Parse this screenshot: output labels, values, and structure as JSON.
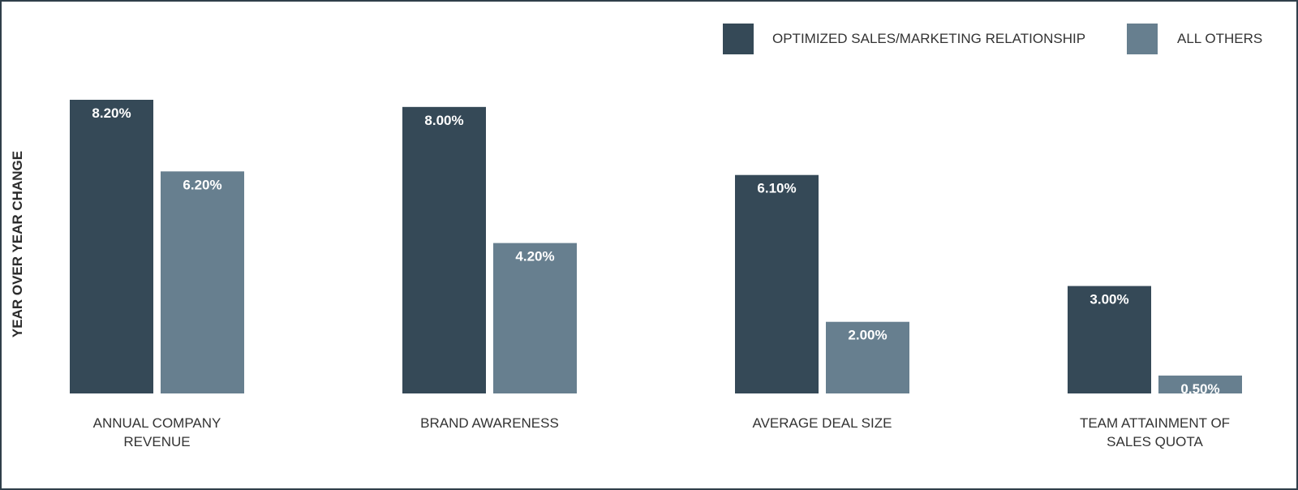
{
  "chart_data": {
    "type": "bar",
    "ylabel": "YEAR OVER YEAR CHANGE",
    "ylim": [
      0,
      8.2
    ],
    "grid": false,
    "legend_position": "top-right",
    "categories": [
      [
        "ANNUAL COMPANY",
        "REVENUE"
      ],
      [
        "BRAND AWARENESS"
      ],
      [
        "AVERAGE DEAL SIZE"
      ],
      [
        "TEAM ATTAINMENT OF",
        "SALES QUOTA"
      ]
    ],
    "series": [
      {
        "name": "OPTIMIZED SALES/MARKETING RELATIONSHIP",
        "color": "#354957",
        "values": [
          8.2,
          8.0,
          6.1,
          3.0
        ],
        "labels": [
          "8.20%",
          "8.00%",
          "6.10%",
          "3.00%"
        ]
      },
      {
        "name": "ALL OTHERS",
        "color": "#677f8f",
        "values": [
          6.2,
          4.2,
          2.0,
          0.5
        ],
        "labels": [
          "6.20%",
          "4.20%",
          "2.00%",
          "0.50%"
        ]
      }
    ]
  }
}
